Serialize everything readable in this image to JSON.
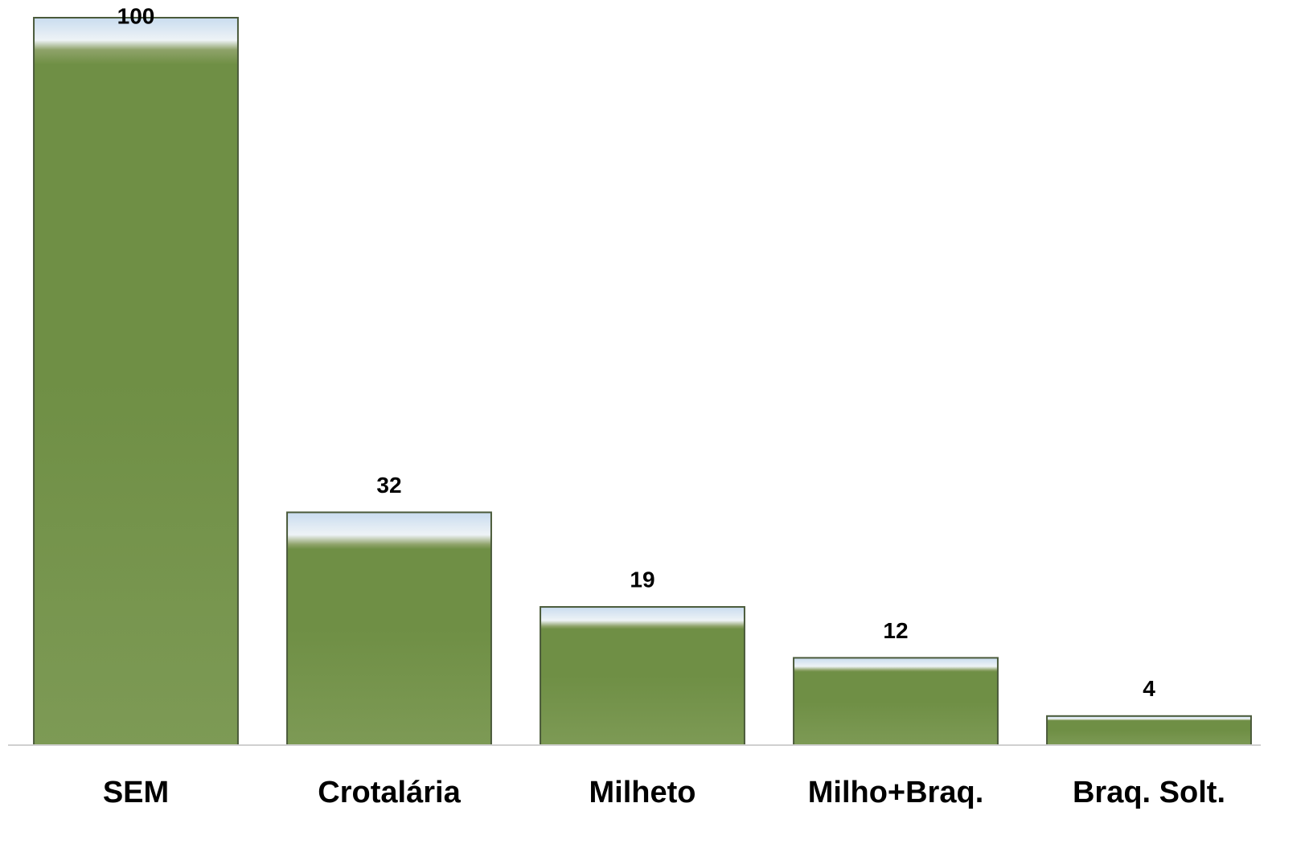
{
  "chart_data": {
    "type": "bar",
    "categories": [
      "SEM",
      "Crotalária",
      "Milheto",
      "Milho+Braq.",
      "Braq. Solt."
    ],
    "values": [
      100,
      32,
      19,
      12,
      4
    ],
    "color": "#6f8f45",
    "ylim": [
      0,
      100
    ]
  }
}
